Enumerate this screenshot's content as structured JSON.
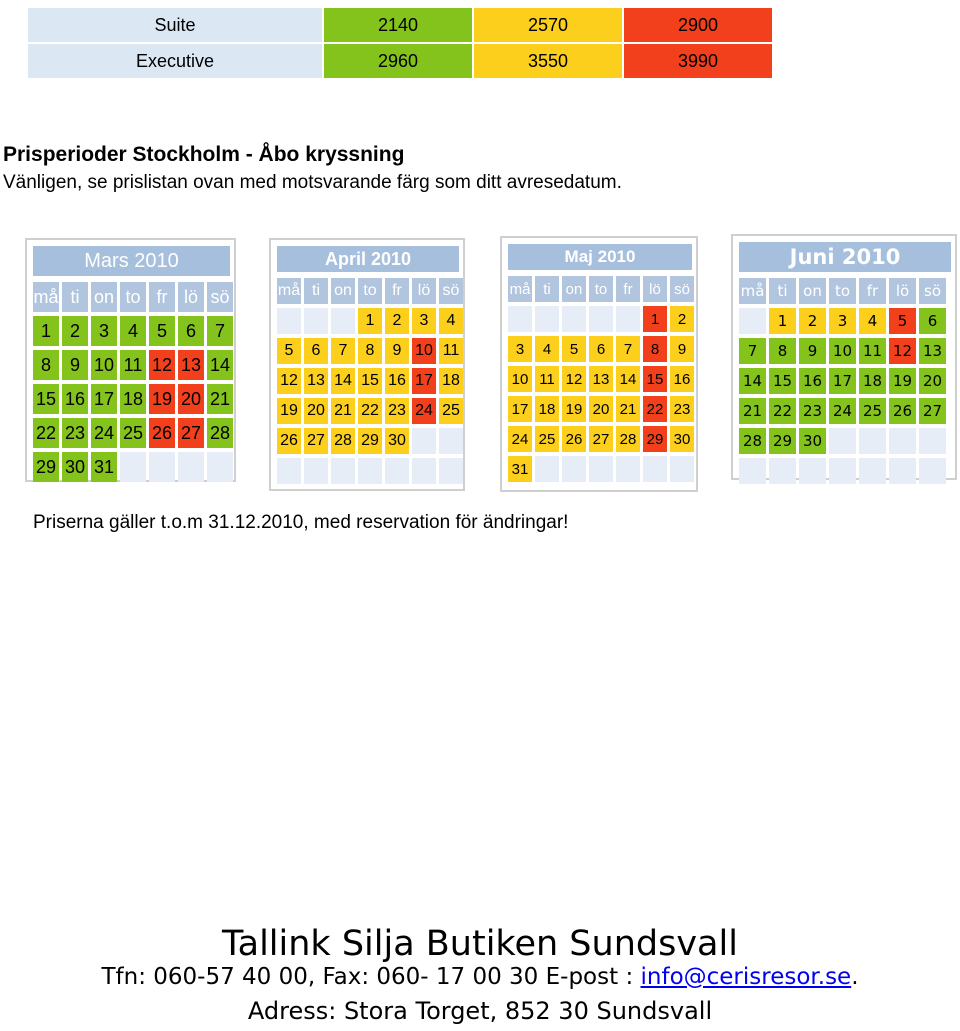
{
  "colors": {
    "green": "#84c21c",
    "yellow": "#fccf1d",
    "red": "#f2401c",
    "header_blue": "#a6bfdc",
    "empty_cell": "#e6edf6"
  },
  "price_table": {
    "rows": [
      {
        "category": "Suite",
        "prices": [
          "2140",
          "2570",
          "2900"
        ]
      },
      {
        "category": "Executive",
        "prices": [
          "2960",
          "3550",
          "3990"
        ]
      }
    ]
  },
  "heading": "Prisperioder Stockholm - Åbo kryssning",
  "subtitle": "Vänligen, se prislistan ovan med motsvarande färg som ditt avresedatum.",
  "calendars": [
    {
      "title": "Mars 2010",
      "weekdays": [
        "må",
        "ti",
        "on",
        "to",
        "fr",
        "lö",
        "sö"
      ],
      "days": [
        {
          "d": "1",
          "c": "green"
        },
        {
          "d": "2",
          "c": "green"
        },
        {
          "d": "3",
          "c": "green"
        },
        {
          "d": "4",
          "c": "green"
        },
        {
          "d": "5",
          "c": "green"
        },
        {
          "d": "6",
          "c": "green"
        },
        {
          "d": "7",
          "c": "green"
        },
        {
          "d": "8",
          "c": "green"
        },
        {
          "d": "9",
          "c": "green"
        },
        {
          "d": "10",
          "c": "green"
        },
        {
          "d": "11",
          "c": "green"
        },
        {
          "d": "12",
          "c": "red"
        },
        {
          "d": "13",
          "c": "red"
        },
        {
          "d": "14",
          "c": "green"
        },
        {
          "d": "15",
          "c": "green"
        },
        {
          "d": "16",
          "c": "green"
        },
        {
          "d": "17",
          "c": "green"
        },
        {
          "d": "18",
          "c": "green"
        },
        {
          "d": "19",
          "c": "red"
        },
        {
          "d": "20",
          "c": "red"
        },
        {
          "d": "21",
          "c": "green"
        },
        {
          "d": "22",
          "c": "green"
        },
        {
          "d": "23",
          "c": "green"
        },
        {
          "d": "24",
          "c": "green"
        },
        {
          "d": "25",
          "c": "green"
        },
        {
          "d": "26",
          "c": "red"
        },
        {
          "d": "27",
          "c": "red"
        },
        {
          "d": "28",
          "c": "green"
        },
        {
          "d": "29",
          "c": "green"
        },
        {
          "d": "30",
          "c": "green"
        },
        {
          "d": "31",
          "c": "green"
        },
        {
          "d": "",
          "c": "empty"
        },
        {
          "d": "",
          "c": "empty"
        },
        {
          "d": "",
          "c": "empty"
        },
        {
          "d": "",
          "c": "empty"
        }
      ]
    },
    {
      "title": "April 2010",
      "weekdays": [
        "må",
        "ti",
        "on",
        "to",
        "fr",
        "lö",
        "sö"
      ],
      "days": [
        {
          "d": "",
          "c": "empty"
        },
        {
          "d": "",
          "c": "empty"
        },
        {
          "d": "",
          "c": "empty"
        },
        {
          "d": "1",
          "c": "yellow"
        },
        {
          "d": "2",
          "c": "yellow"
        },
        {
          "d": "3",
          "c": "yellow"
        },
        {
          "d": "4",
          "c": "yellow"
        },
        {
          "d": "5",
          "c": "yellow"
        },
        {
          "d": "6",
          "c": "yellow"
        },
        {
          "d": "7",
          "c": "yellow"
        },
        {
          "d": "8",
          "c": "yellow"
        },
        {
          "d": "9",
          "c": "yellow"
        },
        {
          "d": "10",
          "c": "red"
        },
        {
          "d": "11",
          "c": "yellow"
        },
        {
          "d": "12",
          "c": "yellow"
        },
        {
          "d": "13",
          "c": "yellow"
        },
        {
          "d": "14",
          "c": "yellow"
        },
        {
          "d": "15",
          "c": "yellow"
        },
        {
          "d": "16",
          "c": "yellow"
        },
        {
          "d": "17",
          "c": "red"
        },
        {
          "d": "18",
          "c": "yellow"
        },
        {
          "d": "19",
          "c": "yellow"
        },
        {
          "d": "20",
          "c": "yellow"
        },
        {
          "d": "21",
          "c": "yellow"
        },
        {
          "d": "22",
          "c": "yellow"
        },
        {
          "d": "23",
          "c": "yellow"
        },
        {
          "d": "24",
          "c": "red"
        },
        {
          "d": "25",
          "c": "yellow"
        },
        {
          "d": "26",
          "c": "yellow"
        },
        {
          "d": "27",
          "c": "yellow"
        },
        {
          "d": "28",
          "c": "yellow"
        },
        {
          "d": "29",
          "c": "yellow"
        },
        {
          "d": "30",
          "c": "yellow"
        },
        {
          "d": "",
          "c": "empty"
        },
        {
          "d": "",
          "c": "empty"
        },
        {
          "d": "",
          "c": "empty"
        },
        {
          "d": "",
          "c": "empty"
        },
        {
          "d": "",
          "c": "empty"
        },
        {
          "d": "",
          "c": "empty"
        },
        {
          "d": "",
          "c": "empty"
        },
        {
          "d": "",
          "c": "empty"
        },
        {
          "d": "",
          "c": "empty"
        }
      ]
    },
    {
      "title": "Maj 2010",
      "weekdays": [
        "må",
        "ti",
        "on",
        "to",
        "fr",
        "lö",
        "sö"
      ],
      "days": [
        {
          "d": "",
          "c": "empty"
        },
        {
          "d": "",
          "c": "empty"
        },
        {
          "d": "",
          "c": "empty"
        },
        {
          "d": "",
          "c": "empty"
        },
        {
          "d": "",
          "c": "empty"
        },
        {
          "d": "1",
          "c": "red"
        },
        {
          "d": "2",
          "c": "yellow"
        },
        {
          "d": "3",
          "c": "yellow"
        },
        {
          "d": "4",
          "c": "yellow"
        },
        {
          "d": "5",
          "c": "yellow"
        },
        {
          "d": "6",
          "c": "yellow"
        },
        {
          "d": "7",
          "c": "yellow"
        },
        {
          "d": "8",
          "c": "red"
        },
        {
          "d": "9",
          "c": "yellow"
        },
        {
          "d": "10",
          "c": "yellow"
        },
        {
          "d": "11",
          "c": "yellow"
        },
        {
          "d": "12",
          "c": "yellow"
        },
        {
          "d": "13",
          "c": "yellow"
        },
        {
          "d": "14",
          "c": "yellow"
        },
        {
          "d": "15",
          "c": "red"
        },
        {
          "d": "16",
          "c": "yellow"
        },
        {
          "d": "17",
          "c": "yellow"
        },
        {
          "d": "18",
          "c": "yellow"
        },
        {
          "d": "19",
          "c": "yellow"
        },
        {
          "d": "20",
          "c": "yellow"
        },
        {
          "d": "21",
          "c": "yellow"
        },
        {
          "d": "22",
          "c": "red"
        },
        {
          "d": "23",
          "c": "yellow"
        },
        {
          "d": "24",
          "c": "yellow"
        },
        {
          "d": "25",
          "c": "yellow"
        },
        {
          "d": "26",
          "c": "yellow"
        },
        {
          "d": "27",
          "c": "yellow"
        },
        {
          "d": "28",
          "c": "yellow"
        },
        {
          "d": "29",
          "c": "red"
        },
        {
          "d": "30",
          "c": "yellow"
        },
        {
          "d": "31",
          "c": "yellow"
        },
        {
          "d": "",
          "c": "empty"
        },
        {
          "d": "",
          "c": "empty"
        },
        {
          "d": "",
          "c": "empty"
        },
        {
          "d": "",
          "c": "empty"
        },
        {
          "d": "",
          "c": "empty"
        },
        {
          "d": "",
          "c": "empty"
        }
      ]
    },
    {
      "title": "Juni 2010",
      "weekdays": [
        "må",
        "ti",
        "on",
        "to",
        "fr",
        "lö",
        "sö"
      ],
      "days": [
        {
          "d": "",
          "c": "empty"
        },
        {
          "d": "1",
          "c": "yellow"
        },
        {
          "d": "2",
          "c": "yellow"
        },
        {
          "d": "3",
          "c": "yellow"
        },
        {
          "d": "4",
          "c": "yellow"
        },
        {
          "d": "5",
          "c": "red"
        },
        {
          "d": "6",
          "c": "green"
        },
        {
          "d": "7",
          "c": "green"
        },
        {
          "d": "8",
          "c": "green"
        },
        {
          "d": "9",
          "c": "green"
        },
        {
          "d": "10",
          "c": "green"
        },
        {
          "d": "11",
          "c": "green"
        },
        {
          "d": "12",
          "c": "red"
        },
        {
          "d": "13",
          "c": "green"
        },
        {
          "d": "14",
          "c": "green"
        },
        {
          "d": "15",
          "c": "green"
        },
        {
          "d": "16",
          "c": "green"
        },
        {
          "d": "17",
          "c": "green"
        },
        {
          "d": "18",
          "c": "green"
        },
        {
          "d": "19",
          "c": "green"
        },
        {
          "d": "20",
          "c": "green"
        },
        {
          "d": "21",
          "c": "green"
        },
        {
          "d": "22",
          "c": "green"
        },
        {
          "d": "23",
          "c": "green"
        },
        {
          "d": "24",
          "c": "green"
        },
        {
          "d": "25",
          "c": "green"
        },
        {
          "d": "26",
          "c": "green"
        },
        {
          "d": "27",
          "c": "green"
        },
        {
          "d": "28",
          "c": "green"
        },
        {
          "d": "29",
          "c": "green"
        },
        {
          "d": "30",
          "c": "green"
        },
        {
          "d": "",
          "c": "empty"
        },
        {
          "d": "",
          "c": "empty"
        },
        {
          "d": "",
          "c": "empty"
        },
        {
          "d": "",
          "c": "empty"
        },
        {
          "d": "",
          "c": "empty"
        },
        {
          "d": "",
          "c": "empty"
        },
        {
          "d": "",
          "c": "empty"
        },
        {
          "d": "",
          "c": "empty"
        },
        {
          "d": "",
          "c": "empty"
        },
        {
          "d": "",
          "c": "empty"
        },
        {
          "d": "",
          "c": "empty"
        }
      ]
    }
  ],
  "notice": "Priserna gäller t.o.m 31.12.2010, med reservation för ändringar!",
  "footer": {
    "title": "Tallink Silja Butiken Sundsvall",
    "contact_prefix": "Tfn: 060-57 40 00, Fax: 060- 17 00 30 E-post : ",
    "email": "info@cerisresor.se",
    "contact_suffix": ".",
    "address": "Adress: Stora Torget, 852 30 Sundsvall"
  }
}
